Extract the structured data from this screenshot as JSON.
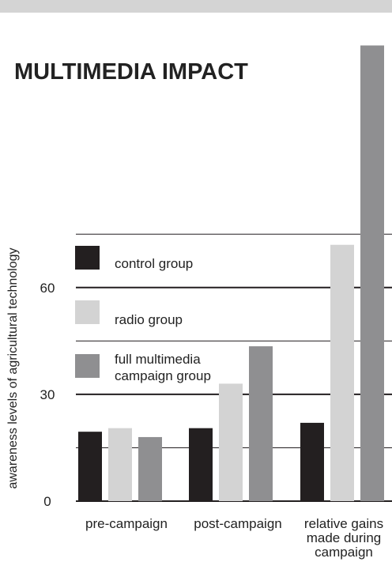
{
  "chart_data": {
    "type": "bar",
    "title": "MULTIMEDIA IMPACT",
    "ylabel": "awareness levels of agricultural technology",
    "xlabel": "",
    "categories": [
      [
        "pre-campaign"
      ],
      [
        "post-campaign"
      ],
      [
        "relative gains",
        "made during",
        "campaign"
      ]
    ],
    "series": [
      {
        "name": "control group",
        "values": [
          19.5,
          20.5,
          22
        ],
        "color": "#231f20"
      },
      {
        "name": "radio group",
        "values": [
          20.5,
          33,
          72
        ],
        "color": "#d3d3d3"
      },
      {
        "name": "full multimedia campaign group",
        "legend_lines": [
          "full multimedia",
          "campaign group"
        ],
        "values": [
          18,
          43.5,
          128
        ],
        "color": "#8f8f91"
      }
    ],
    "yticks": [
      0,
      30,
      60
    ],
    "ylim": [
      0,
      131
    ],
    "gridlines": [
      15,
      30,
      45,
      60,
      75
    ],
    "major_gridlines": [
      30,
      60
    ],
    "legend_placement": "upper-left, inside plot"
  }
}
